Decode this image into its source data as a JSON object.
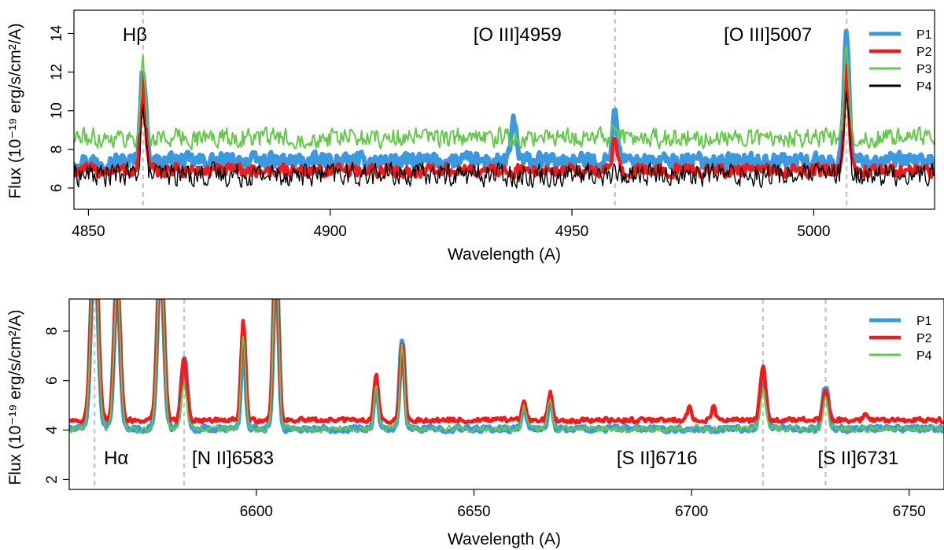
{
  "chart_data": [
    {
      "type": "line",
      "xlabel": "Wavelength (A)",
      "ylabel": "Flux (10⁻¹⁹ erg/s/cm²/A)",
      "xlim": [
        4847,
        5025
      ],
      "ylim": [
        4.9,
        15.2
      ],
      "xticks": [
        4850,
        4900,
        4950,
        5000
      ],
      "yticks": [
        6,
        8,
        10,
        12,
        14
      ],
      "legend": {
        "placement": "top-right",
        "entries": [
          "P1",
          "P2",
          "P3",
          "P4"
        ]
      },
      "annotations": [
        {
          "text": "Hβ",
          "x": 4861.3
        },
        {
          "text": "[O III]4959",
          "x": 4958.9
        },
        {
          "text": "[O III]5007",
          "x": 5006.8
        }
      ],
      "series": [
        {
          "name": "P1",
          "color": "#3a99df",
          "width": 6,
          "baseline": 7.4,
          "noise": 0.5,
          "peaks": [
            [
              4861.3,
              12.2,
              0.55
            ],
            [
              4958.9,
              9.9,
              0.55
            ],
            [
              5006.8,
              13.8,
              0.55
            ],
            [
              4938,
              9.6,
              0.5
            ]
          ]
        },
        {
          "name": "P2",
          "color": "#f21b1b",
          "width": 4.5,
          "baseline": 6.9,
          "noise": 0.42,
          "peaks": [
            [
              4861.3,
              11.6,
              0.5
            ],
            [
              4958.9,
              8.6,
              0.5
            ],
            [
              5006.8,
              12.3,
              0.5
            ]
          ]
        },
        {
          "name": "P3",
          "color": "#66c84a",
          "width": 2,
          "baseline": 8.6,
          "noise": 0.62,
          "peaks": [
            [
              4861.3,
              12.4,
              0.5
            ],
            [
              4958.9,
              9.5,
              0.5
            ],
            [
              5006.8,
              13.6,
              0.5
            ]
          ]
        },
        {
          "name": "P4",
          "color": "#000000",
          "width": 1.4,
          "baseline": 6.7,
          "noise": 0.75,
          "peaks": [
            [
              4861.3,
              10.0,
              0.5
            ],
            [
              5006.8,
              10.5,
              0.5
            ]
          ]
        }
      ]
    },
    {
      "type": "line",
      "xlabel": "Wavelength (A)",
      "ylabel": "Flux (10⁻¹⁹ erg/s/cm²/A)",
      "xlim": [
        6557,
        6758
      ],
      "ylim": [
        1.6,
        9.3
      ],
      "xticks": [
        6600,
        6650,
        6700,
        6750
      ],
      "yticks": [
        2,
        4,
        6,
        8
      ],
      "legend": {
        "placement": "top-right",
        "entries": [
          "P1",
          "P2",
          "P4"
        ]
      },
      "annotations": [
        {
          "text": "Hα",
          "x": 6562.8
        },
        {
          "text": "[N II]6583",
          "x": 6583.4
        },
        {
          "text": "[S II]6716",
          "x": 6716.4
        },
        {
          "text": "[S II]6731",
          "x": 6730.8
        }
      ],
      "series": [
        {
          "name": "P1",
          "color": "#3a99df",
          "width": 6,
          "baseline": 4.05,
          "noise": 0.14,
          "peaks": [
            [
              6562.8,
              12,
              0.8
            ],
            [
              6568,
              10,
              0.7
            ],
            [
              6578,
              11,
              0.75
            ],
            [
              6583.4,
              6.9,
              0.7
            ],
            [
              6597,
              8.0,
              0.5
            ],
            [
              6604.5,
              11,
              0.6
            ],
            [
              6627.5,
              6.0,
              0.5
            ],
            [
              6633.5,
              7.6,
              0.55
            ],
            [
              6661.5,
              5.0,
              0.5
            ],
            [
              6667.5,
              5.4,
              0.5
            ],
            [
              6716.4,
              6.2,
              0.7
            ],
            [
              6730.8,
              5.7,
              0.7
            ]
          ]
        },
        {
          "name": "P2",
          "color": "#f21b1b",
          "width": 4.5,
          "baseline": 4.4,
          "noise": 0.12,
          "peaks": [
            [
              6562.8,
              12,
              0.8
            ],
            [
              6568,
              10,
              0.7
            ],
            [
              6578,
              11,
              0.75
            ],
            [
              6583.4,
              6.9,
              0.6
            ],
            [
              6597,
              8.4,
              0.5
            ],
            [
              6604.5,
              11,
              0.6
            ],
            [
              6627.5,
              6.2,
              0.5
            ],
            [
              6633.5,
              7.6,
              0.5
            ],
            [
              6661.5,
              5.1,
              0.5
            ],
            [
              6667.5,
              5.5,
              0.5
            ],
            [
              6699.5,
              4.9,
              0.5
            ],
            [
              6705,
              4.9,
              0.5
            ],
            [
              6716.4,
              6.6,
              0.6
            ],
            [
              6730.8,
              5.6,
              0.6
            ],
            [
              6740,
              4.7,
              0.5
            ]
          ]
        },
        {
          "name": "P4",
          "color": "#66c84a",
          "width": 2,
          "baseline": 4.05,
          "noise": 0.18,
          "peaks": [
            [
              6562.8,
              12,
              0.8
            ],
            [
              6568,
              10,
              0.7
            ],
            [
              6578,
              11,
              0.75
            ],
            [
              6583.4,
              5.8,
              0.6
            ],
            [
              6597,
              7.8,
              0.5
            ],
            [
              6604.5,
              11,
              0.6
            ],
            [
              6627.5,
              5.8,
              0.5
            ],
            [
              6633.5,
              7.5,
              0.5
            ],
            [
              6661.5,
              4.9,
              0.5
            ],
            [
              6667.5,
              5.3,
              0.5
            ],
            [
              6716.4,
              5.6,
              0.6
            ],
            [
              6730.8,
              5.2,
              0.6
            ]
          ]
        }
      ]
    }
  ]
}
